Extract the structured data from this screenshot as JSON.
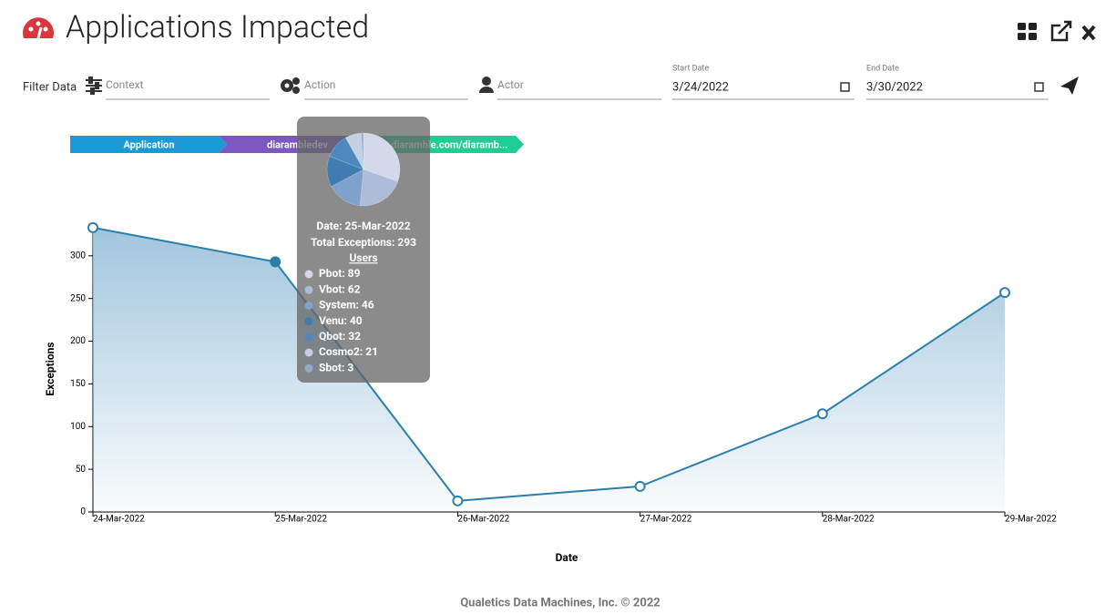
{
  "header": {
    "title": "Applications Impacted"
  },
  "filters": {
    "label": "Filter Data",
    "context": "Context",
    "action": "Action",
    "actor": "Actor",
    "start_label": "Start Date",
    "start_value": "3/24/2022",
    "end_label": "End Date",
    "end_value": "3/30/2022"
  },
  "breadcrumb": [
    "Application",
    "diarambledev",
    "y.diaramble.com/diaramb..."
  ],
  "chart_data": [
    {
      "type": "line",
      "x_label": "Date",
      "y_label": "Exceptions",
      "categories": [
        "24-Mar-2022",
        "25-Mar-2022",
        "26-Mar-2022",
        "27-Mar-2022",
        "28-Mar-2022",
        "29-Mar-2022"
      ],
      "values": [
        333,
        293,
        13,
        30,
        115,
        257
      ],
      "color": "#2a7fab",
      "ylim": [
        0,
        335
      ],
      "yticks": [
        0,
        50,
        100,
        150,
        200,
        250,
        300
      ]
    },
    {
      "type": "pie",
      "title": "Users",
      "date_label": "Date: 25-Mar-2022",
      "total_label": "Total Exceptions: 293",
      "values": [
        89,
        62,
        46,
        40,
        32,
        21,
        3
      ],
      "value_labels": [
        "Pbot: 89",
        "Vbot: 62",
        "System: 46",
        "Venu: 40",
        "Qbot: 32",
        "Cosmo2: 21",
        "Sbot: 3"
      ],
      "colors": [
        "#d3d9e8",
        "#aebcd8",
        "#7fa2cc",
        "#3f7cb2",
        "#4f88bf",
        "#c6d0e3",
        "#97a9c8"
      ]
    }
  ],
  "footer": "Qualetics Data Machines, Inc. © 2022"
}
